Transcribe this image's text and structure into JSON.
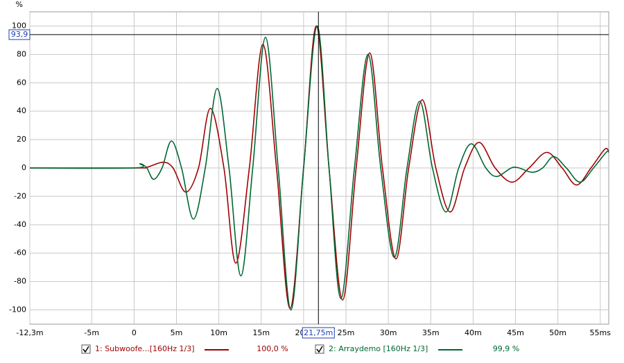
{
  "chart_data": {
    "type": "line",
    "y_unit": "%",
    "xlim": [
      -12.3,
      56
    ],
    "ylim": [
      -110,
      110
    ],
    "xticks": [
      {
        "value": -12.3,
        "label": "-12,3m"
      },
      {
        "value": -5,
        "label": "-5m"
      },
      0,
      {
        "value": 5,
        "label": "5m"
      },
      {
        "value": 10,
        "label": "10m"
      },
      {
        "value": 15,
        "label": "15m"
      },
      {
        "value": 20,
        "label": "20m"
      },
      {
        "value": 25,
        "label": "25m"
      },
      {
        "value": 30,
        "label": "30m"
      },
      {
        "value": 35,
        "label": "35m"
      },
      {
        "value": 40,
        "label": "40m"
      },
      {
        "value": 45,
        "label": "45m"
      },
      {
        "value": 50,
        "label": "50m"
      },
      {
        "value": 55,
        "label": "55ms"
      }
    ],
    "yticks": [
      -100,
      -80,
      -60,
      -40,
      -20,
      0,
      20,
      40,
      60,
      80,
      100
    ],
    "grid": true,
    "cursor": {
      "x": {
        "value": 21.75,
        "label": "21,75m"
      },
      "y": {
        "value": 93.9,
        "label": "93,9"
      }
    },
    "series": [
      {
        "name": "1: Subwoofe...[160Hz 1/3]",
        "color": "#a00000",
        "level": "100,0 %",
        "x": [
          -12.3,
          0,
          1.5,
          3.4,
          4.6,
          6.1,
          7.6,
          9.0,
          10.6,
          12.0,
          13.6,
          15.2,
          16.8,
          18.4,
          20.0,
          21.5,
          23.0,
          24.6,
          26.2,
          27.8,
          29.3,
          30.9,
          32.4,
          34.0,
          35.6,
          37.3,
          39.0,
          40.7,
          42.6,
          44.6,
          46.6,
          48.7,
          50.5,
          52.2,
          53.9,
          55.5,
          56
        ],
        "values": [
          0,
          0,
          0.5,
          4,
          0,
          -17,
          0,
          42,
          0,
          -67,
          0,
          87,
          0,
          -99,
          0,
          100,
          0,
          -93,
          0,
          81,
          0,
          -64,
          0,
          48,
          0,
          -31,
          0,
          18,
          0,
          -10,
          0,
          11,
          0,
          -12,
          0,
          13,
          12
        ]
      },
      {
        "name": "2: Arraydemo [160Hz 1/3]",
        "color": "#006633",
        "level": "99,9 %",
        "x": [
          -12.3,
          0,
          0.7,
          1.5,
          2.3,
          3.3,
          4.4,
          5.6,
          7.0,
          8.4,
          9.8,
          11.2,
          12.6,
          14.0,
          15.5,
          17.0,
          18.5,
          20.0,
          21.6,
          23.0,
          24.4,
          26.0,
          27.6,
          29.1,
          30.7,
          32.2,
          33.7,
          35.2,
          36.8,
          38.3,
          39.8,
          41.5,
          42.8,
          44.8,
          46.9,
          48.2,
          49.5,
          51.0,
          52.6,
          54.2,
          55.7,
          56
        ],
        "values": [
          0,
          0,
          3,
          0,
          -8,
          0,
          19,
          0,
          -36,
          0,
          56,
          0,
          -76,
          0,
          92,
          0,
          -100,
          0,
          100,
          0,
          -92,
          0,
          80,
          0,
          -63,
          0,
          47,
          0,
          -31,
          0,
          17,
          0,
          -6,
          0.5,
          -3,
          0,
          8,
          0,
          -10,
          0,
          11,
          11
        ]
      }
    ]
  }
}
